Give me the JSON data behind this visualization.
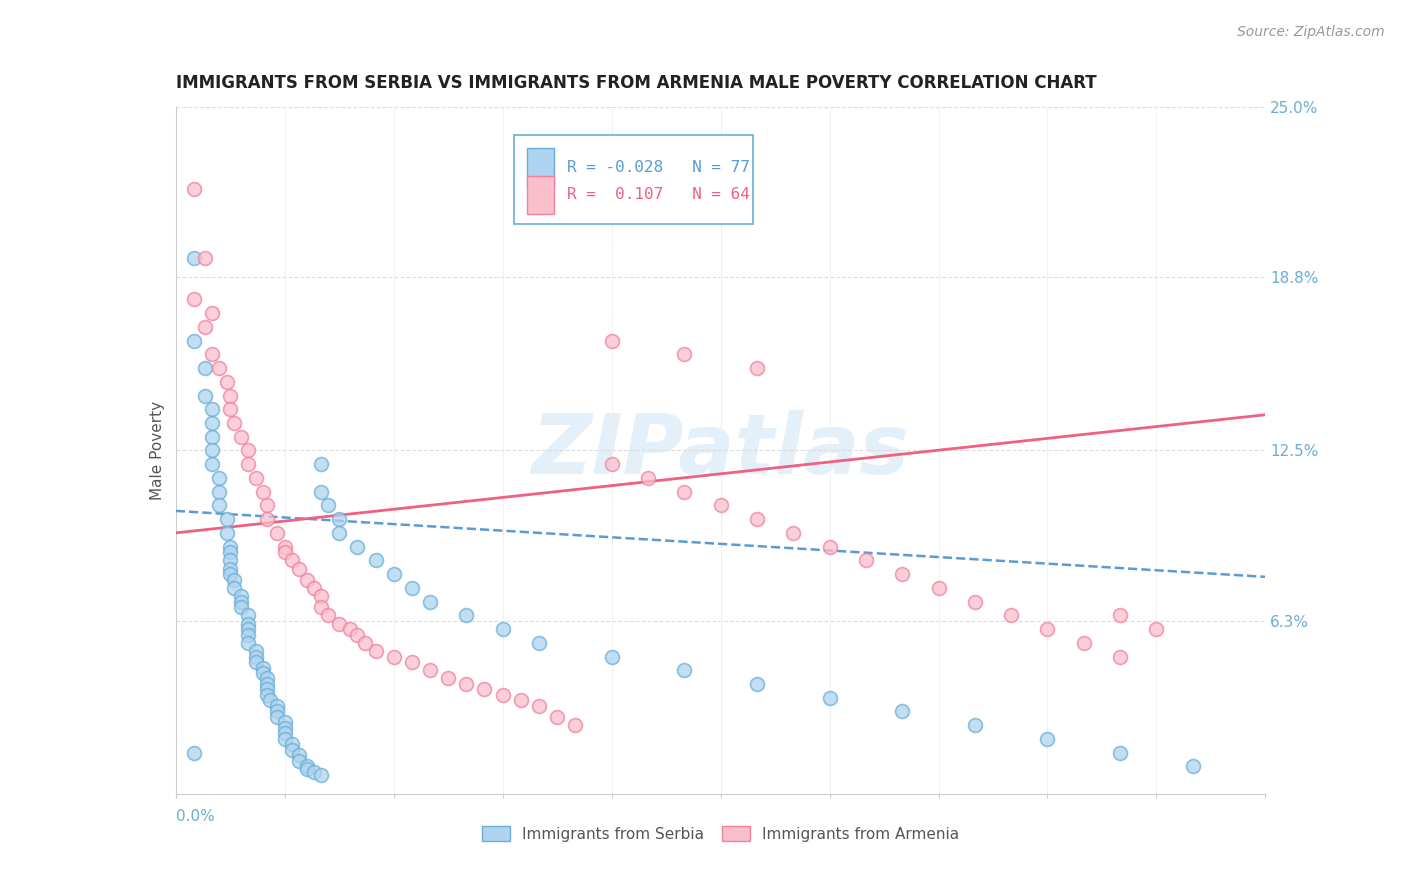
{
  "title": "IMMIGRANTS FROM SERBIA VS IMMIGRANTS FROM ARMENIA MALE POVERTY CORRELATION CHART",
  "source": "Source: ZipAtlas.com",
  "ylabel": "Male Poverty",
  "right_ytick_vals": [
    0.0,
    0.063,
    0.125,
    0.188,
    0.25
  ],
  "right_yticklabels": [
    "",
    "6.3%",
    "12.5%",
    "18.8%",
    "25.0%"
  ],
  "xmin": 0.0,
  "xmax": 0.3,
  "ymin": 0.0,
  "ymax": 0.25,
  "serbia_color": "#AED4F0",
  "serbia_edge_color": "#6AAED6",
  "armenia_color": "#F9C0CC",
  "armenia_edge_color": "#F080A0",
  "serbia_line_color": "#5B9BD5",
  "armenia_line_color": "#F06080",
  "serbia_R": -0.028,
  "serbia_N": 77,
  "armenia_R": 0.107,
  "armenia_N": 64,
  "title_fontsize": 12,
  "source_fontsize": 10,
  "axis_label_color": "#6AAED6",
  "watermark": "ZIPatlas",
  "serbia_trendline_start_y": 0.103,
  "serbia_trendline_end_y": 0.079,
  "armenia_trendline_start_y": 0.095,
  "armenia_trendline_end_y": 0.138,
  "serbia_scatter_x": [
    0.005,
    0.005,
    0.008,
    0.008,
    0.01,
    0.01,
    0.01,
    0.01,
    0.01,
    0.012,
    0.012,
    0.012,
    0.014,
    0.014,
    0.015,
    0.015,
    0.015,
    0.015,
    0.015,
    0.016,
    0.016,
    0.018,
    0.018,
    0.018,
    0.02,
    0.02,
    0.02,
    0.02,
    0.02,
    0.022,
    0.022,
    0.022,
    0.024,
    0.024,
    0.025,
    0.025,
    0.025,
    0.025,
    0.026,
    0.028,
    0.028,
    0.028,
    0.03,
    0.03,
    0.03,
    0.03,
    0.032,
    0.032,
    0.034,
    0.034,
    0.036,
    0.036,
    0.038,
    0.04,
    0.04,
    0.04,
    0.042,
    0.045,
    0.045,
    0.05,
    0.055,
    0.06,
    0.065,
    0.07,
    0.08,
    0.09,
    0.1,
    0.12,
    0.14,
    0.16,
    0.18,
    0.2,
    0.22,
    0.24,
    0.26,
    0.28,
    0.005
  ],
  "serbia_scatter_y": [
    0.195,
    0.165,
    0.155,
    0.145,
    0.14,
    0.135,
    0.13,
    0.125,
    0.12,
    0.115,
    0.11,
    0.105,
    0.1,
    0.095,
    0.09,
    0.088,
    0.085,
    0.082,
    0.08,
    0.078,
    0.075,
    0.072,
    0.07,
    0.068,
    0.065,
    0.062,
    0.06,
    0.058,
    0.055,
    0.052,
    0.05,
    0.048,
    0.046,
    0.044,
    0.042,
    0.04,
    0.038,
    0.036,
    0.034,
    0.032,
    0.03,
    0.028,
    0.026,
    0.024,
    0.022,
    0.02,
    0.018,
    0.016,
    0.014,
    0.012,
    0.01,
    0.009,
    0.008,
    0.007,
    0.12,
    0.11,
    0.105,
    0.1,
    0.095,
    0.09,
    0.085,
    0.08,
    0.075,
    0.07,
    0.065,
    0.06,
    0.055,
    0.05,
    0.045,
    0.04,
    0.035,
    0.03,
    0.025,
    0.02,
    0.015,
    0.01,
    0.015
  ],
  "armenia_scatter_x": [
    0.005,
    0.008,
    0.01,
    0.01,
    0.012,
    0.014,
    0.015,
    0.015,
    0.016,
    0.018,
    0.02,
    0.02,
    0.022,
    0.024,
    0.025,
    0.025,
    0.028,
    0.03,
    0.03,
    0.032,
    0.034,
    0.036,
    0.038,
    0.04,
    0.04,
    0.042,
    0.045,
    0.048,
    0.05,
    0.052,
    0.055,
    0.06,
    0.065,
    0.07,
    0.075,
    0.08,
    0.085,
    0.09,
    0.095,
    0.1,
    0.105,
    0.11,
    0.12,
    0.13,
    0.14,
    0.15,
    0.16,
    0.17,
    0.18,
    0.19,
    0.2,
    0.21,
    0.22,
    0.23,
    0.24,
    0.25,
    0.26,
    0.005,
    0.008,
    0.12,
    0.14,
    0.16,
    0.26,
    0.27
  ],
  "armenia_scatter_y": [
    0.22,
    0.195,
    0.175,
    0.16,
    0.155,
    0.15,
    0.145,
    0.14,
    0.135,
    0.13,
    0.125,
    0.12,
    0.115,
    0.11,
    0.105,
    0.1,
    0.095,
    0.09,
    0.088,
    0.085,
    0.082,
    0.078,
    0.075,
    0.072,
    0.068,
    0.065,
    0.062,
    0.06,
    0.058,
    0.055,
    0.052,
    0.05,
    0.048,
    0.045,
    0.042,
    0.04,
    0.038,
    0.036,
    0.034,
    0.032,
    0.028,
    0.025,
    0.12,
    0.115,
    0.11,
    0.105,
    0.1,
    0.095,
    0.09,
    0.085,
    0.08,
    0.075,
    0.07,
    0.065,
    0.06,
    0.055,
    0.05,
    0.18,
    0.17,
    0.165,
    0.16,
    0.155,
    0.065,
    0.06
  ]
}
